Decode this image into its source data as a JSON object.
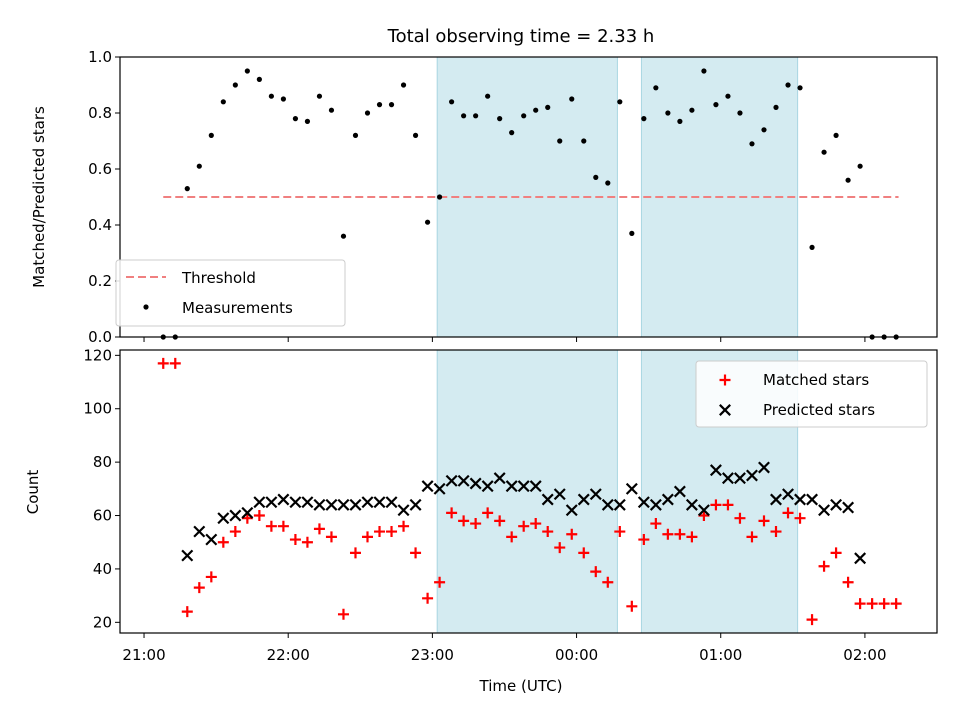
{
  "chart_data": [
    {
      "type": "scatter",
      "title": "Total observing time = 2.33 h",
      "ylabel": "Matched/Predicted stars",
      "xlabel": "",
      "ylim": [
        0,
        1
      ],
      "yticks": [
        "0.0",
        "0.2",
        "0.4",
        "0.6",
        "0.8",
        "1.0"
      ],
      "x_unit": "minutes after 21:00 UTC",
      "xlim": [
        -10,
        330
      ],
      "shaded_intervals": [
        [
          122,
          197
        ],
        [
          207,
          272
        ]
      ],
      "shade_color": "#d4ebf1",
      "legend": {
        "position": "lower-left",
        "entries": [
          "Threshold",
          "Measurements"
        ]
      },
      "series": [
        {
          "name": "Threshold",
          "kind": "dashed-line",
          "color": "#f08080",
          "x": [
            8,
            314
          ],
          "y": [
            0.5,
            0.5
          ]
        },
        {
          "name": "Measurements",
          "kind": "dots",
          "color": "#000000",
          "points": [
            [
              8,
              0.0
            ],
            [
              13,
              0.0
            ],
            [
              18,
              0.53
            ],
            [
              23,
              0.61
            ],
            [
              28,
              0.72
            ],
            [
              33,
              0.84
            ],
            [
              38,
              0.9
            ],
            [
              43,
              0.95
            ],
            [
              48,
              0.92
            ],
            [
              53,
              0.86
            ],
            [
              58,
              0.85
            ],
            [
              63,
              0.78
            ],
            [
              68,
              0.77
            ],
            [
              73,
              0.86
            ],
            [
              78,
              0.81
            ],
            [
              83,
              0.36
            ],
            [
              88,
              0.72
            ],
            [
              93,
              0.8
            ],
            [
              98,
              0.83
            ],
            [
              103,
              0.83
            ],
            [
              108,
              0.9
            ],
            [
              113,
              0.72
            ],
            [
              118,
              0.41
            ],
            [
              123,
              0.5
            ],
            [
              128,
              0.84
            ],
            [
              133,
              0.79
            ],
            [
              138,
              0.79
            ],
            [
              143,
              0.86
            ],
            [
              148,
              0.78
            ],
            [
              153,
              0.73
            ],
            [
              158,
              0.79
            ],
            [
              163,
              0.81
            ],
            [
              168,
              0.82
            ],
            [
              173,
              0.7
            ],
            [
              178,
              0.85
            ],
            [
              183,
              0.7
            ],
            [
              188,
              0.57
            ],
            [
              193,
              0.55
            ],
            [
              198,
              0.84
            ],
            [
              203,
              0.37
            ],
            [
              208,
              0.78
            ],
            [
              213,
              0.89
            ],
            [
              218,
              0.8
            ],
            [
              223,
              0.77
            ],
            [
              228,
              0.81
            ],
            [
              233,
              0.95
            ],
            [
              238,
              0.83
            ],
            [
              243,
              0.86
            ],
            [
              248,
              0.8
            ],
            [
              253,
              0.69
            ],
            [
              258,
              0.74
            ],
            [
              263,
              0.82
            ],
            [
              268,
              0.9
            ],
            [
              273,
              0.89
            ],
            [
              278,
              0.32
            ],
            [
              283,
              0.66
            ],
            [
              288,
              0.72
            ],
            [
              293,
              0.56
            ],
            [
              298,
              0.61
            ],
            [
              303,
              0.0
            ],
            [
              308,
              0.0
            ],
            [
              313,
              0.0
            ]
          ]
        }
      ]
    },
    {
      "type": "scatter",
      "title": "",
      "ylabel": "Count",
      "xlabel": "Time (UTC)",
      "ylim": [
        16,
        122
      ],
      "yticks": [
        "20",
        "40",
        "60",
        "80",
        "100",
        "120"
      ],
      "xticks": [
        {
          "t": 0,
          "label": "21:00"
        },
        {
          "t": 60,
          "label": "22:00"
        },
        {
          "t": 120,
          "label": "23:00"
        },
        {
          "t": 180,
          "label": "00:00"
        },
        {
          "t": 240,
          "label": "01:00"
        },
        {
          "t": 300,
          "label": "02:00"
        }
      ],
      "x_unit": "minutes after 21:00 UTC",
      "xlim": [
        -10,
        330
      ],
      "shaded_intervals": [
        [
          122,
          197
        ],
        [
          207,
          272
        ]
      ],
      "shade_color": "#d4ebf1",
      "legend": {
        "position": "upper-right",
        "entries": [
          "Matched stars",
          "Predicted stars"
        ]
      },
      "series": [
        {
          "name": "Matched stars",
          "kind": "plus",
          "color": "#ff0000",
          "points": [
            [
              8,
              117
            ],
            [
              13,
              117
            ],
            [
              18,
              24
            ],
            [
              23,
              33
            ],
            [
              28,
              37
            ],
            [
              33,
              50
            ],
            [
              38,
              54
            ],
            [
              43,
              59
            ],
            [
              48,
              60
            ],
            [
              53,
              56
            ],
            [
              58,
              56
            ],
            [
              63,
              51
            ],
            [
              68,
              50
            ],
            [
              73,
              55
            ],
            [
              78,
              52
            ],
            [
              83,
              23
            ],
            [
              88,
              46
            ],
            [
              93,
              52
            ],
            [
              98,
              54
            ],
            [
              103,
              54
            ],
            [
              108,
              56
            ],
            [
              113,
              46
            ],
            [
              118,
              29
            ],
            [
              123,
              35
            ],
            [
              128,
              61
            ],
            [
              133,
              58
            ],
            [
              138,
              57
            ],
            [
              143,
              61
            ],
            [
              148,
              58
            ],
            [
              153,
              52
            ],
            [
              158,
              56
            ],
            [
              163,
              57
            ],
            [
              168,
              54
            ],
            [
              173,
              48
            ],
            [
              178,
              53
            ],
            [
              183,
              46
            ],
            [
              188,
              39
            ],
            [
              193,
              35
            ],
            [
              198,
              54
            ],
            [
              203,
              26
            ],
            [
              208,
              51
            ],
            [
              213,
              57
            ],
            [
              218,
              53
            ],
            [
              223,
              53
            ],
            [
              228,
              52
            ],
            [
              233,
              60
            ],
            [
              238,
              64
            ],
            [
              243,
              64
            ],
            [
              248,
              59
            ],
            [
              253,
              52
            ],
            [
              258,
              58
            ],
            [
              263,
              54
            ],
            [
              268,
              61
            ],
            [
              273,
              59
            ],
            [
              278,
              21
            ],
            [
              283,
              41
            ],
            [
              288,
              46
            ],
            [
              293,
              35
            ],
            [
              298,
              27
            ],
            [
              303,
              27
            ],
            [
              308,
              27
            ],
            [
              313,
              27
            ]
          ]
        },
        {
          "name": "Predicted stars",
          "kind": "x",
          "color": "#000000",
          "points": [
            [
              18,
              45
            ],
            [
              23,
              54
            ],
            [
              28,
              51
            ],
            [
              33,
              59
            ],
            [
              38,
              60
            ],
            [
              43,
              61
            ],
            [
              48,
              65
            ],
            [
              53,
              65
            ],
            [
              58,
              66
            ],
            [
              63,
              65
            ],
            [
              68,
              65
            ],
            [
              73,
              64
            ],
            [
              78,
              64
            ],
            [
              83,
              64
            ],
            [
              88,
              64
            ],
            [
              93,
              65
            ],
            [
              98,
              65
            ],
            [
              103,
              65
            ],
            [
              108,
              62
            ],
            [
              113,
              64
            ],
            [
              118,
              71
            ],
            [
              123,
              70
            ],
            [
              128,
              73
            ],
            [
              133,
              73
            ],
            [
              138,
              72
            ],
            [
              143,
              71
            ],
            [
              148,
              74
            ],
            [
              153,
              71
            ],
            [
              158,
              71
            ],
            [
              163,
              71
            ],
            [
              168,
              66
            ],
            [
              173,
              68
            ],
            [
              178,
              62
            ],
            [
              183,
              66
            ],
            [
              188,
              68
            ],
            [
              193,
              64
            ],
            [
              198,
              64
            ],
            [
              203,
              70
            ],
            [
              208,
              65
            ],
            [
              213,
              64
            ],
            [
              218,
              66
            ],
            [
              223,
              69
            ],
            [
              228,
              64
            ],
            [
              233,
              62
            ],
            [
              238,
              77
            ],
            [
              243,
              74
            ],
            [
              248,
              74
            ],
            [
              253,
              75
            ],
            [
              258,
              78
            ],
            [
              263,
              66
            ],
            [
              268,
              68
            ],
            [
              273,
              66
            ],
            [
              278,
              66
            ],
            [
              283,
              62
            ],
            [
              288,
              64
            ],
            [
              293,
              63
            ],
            [
              298,
              44
            ]
          ]
        }
      ]
    }
  ]
}
